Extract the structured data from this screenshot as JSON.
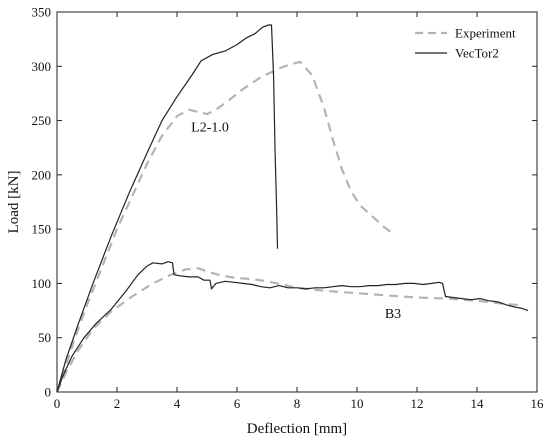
{
  "chart_data": {
    "type": "line",
    "xlabel": "Deflection [mm]",
    "ylabel": "Load [kN]",
    "xlim": [
      0,
      16
    ],
    "ylim": [
      0,
      350
    ],
    "xticks": [
      0,
      2,
      4,
      6,
      8,
      10,
      12,
      14,
      16
    ],
    "yticks": [
      0,
      50,
      100,
      150,
      200,
      250,
      300,
      350
    ],
    "grid": false,
    "legend": {
      "placement": "top-right",
      "entries": [
        "Experiment",
        "VecTor2"
      ]
    },
    "annotations": [
      {
        "text": "L2-1.0",
        "x": 5.1,
        "y": 240
      },
      {
        "text": "B3",
        "x": 11.2,
        "y": 68
      }
    ],
    "series": [
      {
        "name": "Experiment",
        "specimen": "L2-1.0",
        "style": "dashed",
        "color": "#b4b4b4",
        "points": [
          [
            0,
            0
          ],
          [
            0.3,
            25
          ],
          [
            0.6,
            50
          ],
          [
            1.0,
            80
          ],
          [
            1.5,
            115
          ],
          [
            2.0,
            150
          ],
          [
            2.5,
            180
          ],
          [
            3.0,
            210
          ],
          [
            3.5,
            236
          ],
          [
            4.0,
            254
          ],
          [
            4.4,
            260
          ],
          [
            4.7,
            258
          ],
          [
            5.0,
            256
          ],
          [
            5.3,
            260
          ],
          [
            5.7,
            268
          ],
          [
            6.2,
            279
          ],
          [
            6.8,
            290
          ],
          [
            7.4,
            298
          ],
          [
            7.8,
            302
          ],
          [
            8.1,
            304
          ],
          [
            8.5,
            292
          ],
          [
            8.9,
            262
          ],
          [
            9.2,
            232
          ],
          [
            9.5,
            205
          ],
          [
            9.8,
            185
          ],
          [
            10.1,
            172
          ],
          [
            10.5,
            162
          ],
          [
            10.9,
            152
          ],
          [
            11.2,
            146
          ]
        ]
      },
      {
        "name": "VecTor2",
        "specimen": "L2-1.0",
        "style": "solid",
        "color": "#222222",
        "points": [
          [
            0,
            0
          ],
          [
            0.3,
            30
          ],
          [
            0.7,
            62
          ],
          [
            1.2,
            100
          ],
          [
            1.8,
            143
          ],
          [
            2.4,
            183
          ],
          [
            3.0,
            220
          ],
          [
            3.5,
            250
          ],
          [
            4.0,
            272
          ],
          [
            4.5,
            292
          ],
          [
            4.8,
            305
          ],
          [
            5.2,
            311
          ],
          [
            5.6,
            314
          ],
          [
            6.0,
            320
          ],
          [
            6.3,
            326
          ],
          [
            6.6,
            330
          ],
          [
            6.85,
            336
          ],
          [
            7.05,
            338
          ],
          [
            7.15,
            338
          ],
          [
            7.22,
            290
          ],
          [
            7.27,
            220
          ],
          [
            7.32,
            170
          ],
          [
            7.35,
            132
          ]
        ]
      },
      {
        "name": "Experiment",
        "specimen": "B3",
        "style": "dashed",
        "color": "#b4b4b4",
        "points": [
          [
            0,
            0
          ],
          [
            0.3,
            18
          ],
          [
            0.7,
            38
          ],
          [
            1.2,
            58
          ],
          [
            1.8,
            74
          ],
          [
            2.5,
            88
          ],
          [
            3.2,
            100
          ],
          [
            3.8,
            108
          ],
          [
            4.3,
            113
          ],
          [
            4.7,
            114
          ],
          [
            5.0,
            111
          ],
          [
            5.5,
            107
          ],
          [
            6.0,
            105
          ],
          [
            6.5,
            104
          ],
          [
            7.0,
            102
          ],
          [
            7.5,
            99
          ],
          [
            8.0,
            96
          ],
          [
            9.0,
            93
          ],
          [
            10.0,
            91
          ],
          [
            11.0,
            89
          ],
          [
            12.0,
            87
          ],
          [
            13.0,
            86
          ],
          [
            14.0,
            84
          ],
          [
            15.0,
            81
          ],
          [
            15.4,
            80
          ]
        ]
      },
      {
        "name": "VecTor2",
        "specimen": "B3",
        "style": "solid",
        "color": "#222222",
        "points": [
          [
            0,
            0
          ],
          [
            0.2,
            15
          ],
          [
            0.5,
            33
          ],
          [
            0.9,
            50
          ],
          [
            1.3,
            63
          ],
          [
            1.8,
            76
          ],
          [
            2.3,
            93
          ],
          [
            2.7,
            108
          ],
          [
            3.0,
            116
          ],
          [
            3.2,
            119
          ],
          [
            3.5,
            118
          ],
          [
            3.7,
            120
          ],
          [
            3.85,
            119
          ],
          [
            3.9,
            108
          ],
          [
            4.1,
            107
          ],
          [
            4.4,
            106
          ],
          [
            4.7,
            106
          ],
          [
            4.9,
            103
          ],
          [
            5.1,
            103
          ],
          [
            5.15,
            95
          ],
          [
            5.3,
            100
          ],
          [
            5.6,
            102
          ],
          [
            5.9,
            101
          ],
          [
            6.2,
            100
          ],
          [
            6.5,
            99
          ],
          [
            6.8,
            97
          ],
          [
            7.1,
            96
          ],
          [
            7.4,
            98
          ],
          [
            7.7,
            96
          ],
          [
            8.0,
            96
          ],
          [
            8.3,
            95
          ],
          [
            8.6,
            96
          ],
          [
            8.9,
            96
          ],
          [
            9.2,
            97
          ],
          [
            9.5,
            98
          ],
          [
            9.8,
            97
          ],
          [
            10.1,
            97
          ],
          [
            10.4,
            98
          ],
          [
            10.7,
            98
          ],
          [
            11.0,
            99
          ],
          [
            11.3,
            99
          ],
          [
            11.6,
            100
          ],
          [
            11.9,
            100
          ],
          [
            12.2,
            99
          ],
          [
            12.5,
            100
          ],
          [
            12.75,
            101
          ],
          [
            12.85,
            100
          ],
          [
            12.95,
            88
          ],
          [
            13.2,
            87
          ],
          [
            13.5,
            86
          ],
          [
            13.8,
            85
          ],
          [
            14.1,
            86
          ],
          [
            14.4,
            84
          ],
          [
            14.7,
            83
          ],
          [
            15.0,
            80
          ],
          [
            15.3,
            78
          ],
          [
            15.5,
            77
          ],
          [
            15.7,
            75
          ]
        ]
      }
    ]
  }
}
